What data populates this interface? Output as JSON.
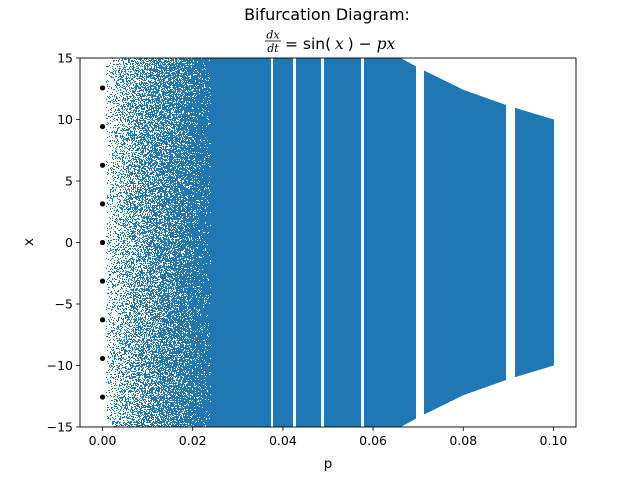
{
  "chart_data": {
    "type": "scatter",
    "title": "Bifurcation Diagram:",
    "subtitle_equation": {
      "numerator": "dx",
      "denominator": "dt",
      "rhs_parts": [
        "= sin(",
        "x",
        ") − ",
        "px"
      ]
    },
    "xlabel": "p",
    "ylabel": "x",
    "xlim": [
      -0.005,
      0.105
    ],
    "ylim": [
      -15,
      15
    ],
    "x_ticks": [
      0.0,
      0.02,
      0.04,
      0.06,
      0.08,
      0.1
    ],
    "x_tick_labels": [
      "0.00",
      "0.02",
      "0.04",
      "0.06",
      "0.08",
      "0.10"
    ],
    "y_ticks": [
      -15,
      -10,
      -5,
      0,
      5,
      10,
      15
    ],
    "y_tick_labels": [
      "−15",
      "−10",
      "−5",
      "0",
      "5",
      "10",
      "15"
    ],
    "grid": false,
    "legend": "none",
    "series": [
      {
        "marker": "pixel",
        "color": "#1f77b4",
        "description_points": {
          "p_range": [
            0.0,
            0.1
          ],
          "upper_envelope": [
            [
              0.0,
              15
            ],
            [
              0.066,
              15
            ],
            [
              0.07,
              14.2
            ],
            [
              0.08,
              12.4
            ],
            [
              0.09,
              11.1
            ],
            [
              0.1,
              10.0
            ]
          ],
          "lower_envelope": [
            [
              0.0,
              -15
            ],
            [
              0.066,
              -15
            ],
            [
              0.07,
              -14.2
            ],
            [
              0.08,
              -12.4
            ],
            [
              0.09,
              -11.1
            ],
            [
              0.1,
              -10.0
            ]
          ],
          "gaps_p": [
            0.0375,
            0.0425,
            0.0487,
            0.0575,
            0.0704,
            0.0904
          ]
        }
      },
      {
        "marker": "dot",
        "color": "#000000",
        "points": [
          [
            0,
            12.566
          ],
          [
            0,
            9.425
          ],
          [
            0,
            6.283
          ],
          [
            0,
            3.142
          ],
          [
            0,
            0
          ],
          [
            0,
            -3.142
          ],
          [
            0,
            -6.283
          ],
          [
            0,
            -9.425
          ],
          [
            0,
            -12.566
          ]
        ]
      }
    ]
  }
}
